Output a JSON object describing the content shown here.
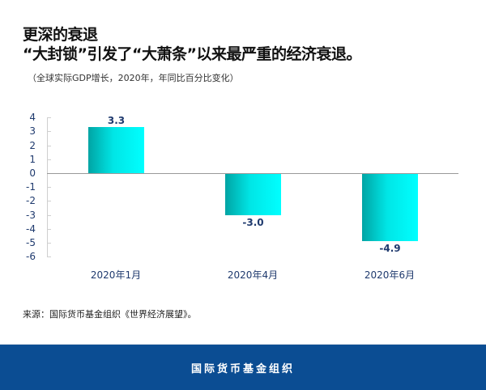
{
  "header": {
    "title_line1": "更深的衰退",
    "title_line2": "“大封锁”引发了“大萧条”以来最严重的经济衰退。",
    "subtitle": "（全球实际GDP增长，2020年，年同比百分比变化）"
  },
  "source": "来源：国际货币基金组织《世界经济展望》。",
  "footer": {
    "label": "国际货币基金组织",
    "color": "#0b4d93"
  },
  "chart_data": {
    "type": "bar",
    "title": "更深的衰退",
    "subtitle": "（全球实际GDP增长，2020年，年同比百分比变化）",
    "categories": [
      "2020年1月",
      "2020年4月",
      "2020年6月"
    ],
    "values": [
      3.3,
      -3.0,
      -4.9
    ],
    "value_labels": [
      "3.3",
      "-3.0",
      "-4.9"
    ],
    "xlabel": "",
    "ylabel": "",
    "ylim": [
      -6,
      4
    ],
    "yticks": [
      "4",
      "3",
      "2",
      "1",
      "0",
      "-1",
      "-2",
      "-3",
      "-4",
      "-5",
      "-6"
    ],
    "grid": false,
    "legend": null,
    "bar_color": "#00e6e6"
  }
}
